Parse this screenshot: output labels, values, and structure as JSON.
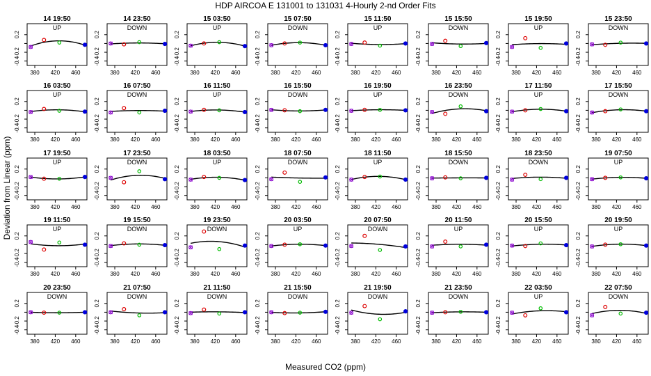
{
  "figure": {
    "title": "HDP   AIRCOA E   131001 to 131031   4-Hourly 2-nd Order Fits",
    "xlabel": "Measured CO2 (ppm)",
    "ylabel": "Deviation from Linear (ppm)"
  },
  "chart_data": {
    "type": "scatter",
    "xlim": [
      365,
      482
    ],
    "ylim": [
      -0.5,
      0.45
    ],
    "xticks": [
      380,
      420,
      460
    ],
    "yticks": [
      -0.4,
      -0.2,
      0.0,
      0.2
    ],
    "ytick_labels": [
      "-0.4",
      "-0.2",
      "",
      "0.2"
    ],
    "grid": false,
    "standards_x": [
      372,
      398,
      428,
      478
    ],
    "marker_colors": [
      "#8800cc",
      "#dd0000",
      "#00bb00",
      "#0000dd"
    ],
    "panels": [
      {
        "title": "14 19:50",
        "dir": "UP",
        "d": [
          -0.08,
          0.08,
          0.02,
          -0.03
        ]
      },
      {
        "title": "14 23:50",
        "dir": "DOWN",
        "d": [
          0.0,
          -0.02,
          0.03,
          -0.01
        ]
      },
      {
        "title": "15 03:50",
        "dir": "UP",
        "d": [
          -0.05,
          0.0,
          0.03,
          -0.06
        ]
      },
      {
        "title": "15 07:50",
        "dir": "DOWN",
        "d": [
          -0.04,
          0.0,
          0.02,
          -0.04
        ]
      },
      {
        "title": "15 11:50",
        "dir": "UP",
        "d": [
          -0.01,
          0.02,
          -0.05,
          0.0
        ]
      },
      {
        "title": "15 15:50",
        "dir": "DOWN",
        "d": [
          -0.01,
          0.06,
          -0.06,
          0.01
        ]
      },
      {
        "title": "15 19:50",
        "dir": "UP",
        "d": [
          -0.08,
          0.12,
          -0.1,
          0.0
        ]
      },
      {
        "title": "15 23:50",
        "dir": "DOWN",
        "d": [
          -0.02,
          -0.03,
          0.02,
          0.0
        ]
      },
      {
        "title": "16 03:50",
        "dir": "UP",
        "d": [
          -0.04,
          0.03,
          -0.01,
          -0.03
        ]
      },
      {
        "title": "16 07:50",
        "dir": "DOWN",
        "d": [
          -0.05,
          0.05,
          -0.05,
          -0.01
        ]
      },
      {
        "title": "16 11:50",
        "dir": "UP",
        "d": [
          -0.03,
          0.01,
          0.0,
          -0.04
        ]
      },
      {
        "title": "16 15:50",
        "dir": "DOWN",
        "d": [
          0.01,
          0.0,
          -0.02,
          0.01
        ]
      },
      {
        "title": "16 19:50",
        "dir": "UP",
        "d": [
          -0.01,
          0.01,
          0.01,
          0.0
        ]
      },
      {
        "title": "16 23:50",
        "dir": "DOWN",
        "d": [
          -0.04,
          -0.08,
          0.09,
          -0.02
        ]
      },
      {
        "title": "17 11:50",
        "dir": "UP",
        "d": [
          -0.03,
          0.0,
          0.03,
          -0.02
        ]
      },
      {
        "title": "17 15:50",
        "dir": "DOWN",
        "d": [
          -0.05,
          -0.02,
          0.02,
          -0.02
        ]
      },
      {
        "title": "17 19:50",
        "dir": "UP",
        "d": [
          0.02,
          -0.02,
          -0.02,
          0.02
        ]
      },
      {
        "title": "17 23:50",
        "dir": "DOWN",
        "d": [
          0.0,
          -0.1,
          0.15,
          -0.03
        ]
      },
      {
        "title": "18 03:50",
        "dir": "UP",
        "d": [
          -0.04,
          0.02,
          0.0,
          -0.05
        ]
      },
      {
        "title": "18 07:50",
        "dir": "DOWN",
        "d": [
          -0.03,
          0.12,
          -0.09,
          0.01
        ]
      },
      {
        "title": "18 11:50",
        "dir": "UP",
        "d": [
          -0.04,
          0.02,
          0.03,
          -0.04
        ]
      },
      {
        "title": "18 15:50",
        "dir": "DOWN",
        "d": [
          -0.01,
          0.01,
          -0.01,
          0.0
        ]
      },
      {
        "title": "18 23:50",
        "dir": "DOWN",
        "d": [
          -0.04,
          0.07,
          -0.03,
          0.0
        ]
      },
      {
        "title": "19 07:50",
        "dir": "UP",
        "d": [
          -0.03,
          0.0,
          0.01,
          -0.01
        ]
      },
      {
        "title": "19 11:50",
        "dir": "UP",
        "d": [
          0.06,
          -0.11,
          0.05,
          0.0
        ]
      },
      {
        "title": "19 15:50",
        "dir": "DOWN",
        "d": [
          -0.03,
          0.03,
          0.0,
          -0.01
        ]
      },
      {
        "title": "19 23:50",
        "dir": "DOWN",
        "d": [
          -0.06,
          0.3,
          -0.1,
          -0.02
        ]
      },
      {
        "title": "20 03:50",
        "dir": "UP",
        "d": [
          -0.03,
          0.0,
          0.01,
          -0.02
        ]
      },
      {
        "title": "20 07:50",
        "dir": "DOWN",
        "d": [
          -0.03,
          0.2,
          -0.12,
          -0.04
        ]
      },
      {
        "title": "20 11:50",
        "dir": "UP",
        "d": [
          -0.04,
          0.07,
          -0.04,
          0.0
        ]
      },
      {
        "title": "20 15:50",
        "dir": "UP",
        "d": [
          -0.02,
          -0.03,
          0.03,
          -0.01
        ]
      },
      {
        "title": "20 19:50",
        "dir": "UP",
        "d": [
          -0.04,
          0.0,
          0.01,
          -0.02
        ]
      },
      {
        "title": "20 23:50",
        "dir": "DOWN",
        "d": [
          0.0,
          -0.01,
          -0.01,
          0.0
        ]
      },
      {
        "title": "21 07:50",
        "dir": "DOWN",
        "d": [
          0.0,
          0.07,
          -0.07,
          0.0
        ]
      },
      {
        "title": "21 11:50",
        "dir": "DOWN",
        "d": [
          -0.02,
          0.06,
          -0.03,
          0.0
        ]
      },
      {
        "title": "21 15:50",
        "dir": "DOWN",
        "d": [
          0.0,
          -0.02,
          -0.01,
          0.01
        ]
      },
      {
        "title": "21 19:50",
        "dir": "DOWN",
        "d": [
          -0.01,
          0.14,
          -0.16,
          0.02
        ]
      },
      {
        "title": "21 23:50",
        "dir": "DOWN",
        "d": [
          -0.01,
          0.0,
          0.01,
          0.0
        ]
      },
      {
        "title": "22 03:50",
        "dir": "UP",
        "d": [
          -0.01,
          -0.07,
          0.09,
          0.0
        ]
      },
      {
        "title": "22 07:50",
        "dir": "DOWN",
        "d": [
          -0.07,
          0.12,
          -0.03,
          -0.01
        ]
      }
    ]
  }
}
